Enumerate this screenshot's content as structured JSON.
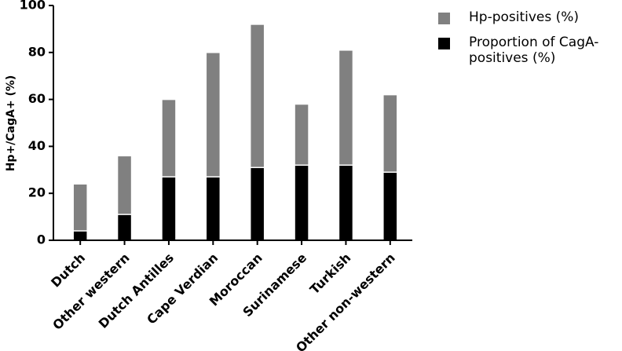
{
  "chart_data": {
    "type": "bar",
    "barmode": "overlay",
    "y_label": "Hp+/CagA+ (%)",
    "categories": [
      "Dutch",
      "Other western",
      "Dutch Antilles",
      "Cape Verdian",
      "Moroccan",
      "Surinamese",
      "Turkish",
      "Other non-western"
    ],
    "series": [
      {
        "name": "Hp-positives (%)",
        "color": "#808080",
        "values": [
          24,
          36,
          60,
          80,
          92,
          58,
          81,
          62
        ]
      },
      {
        "name": "Proportion of CagA-positives (%)",
        "color": "#000000",
        "values": [
          4,
          11,
          27,
          27,
          31,
          32,
          32,
          29
        ]
      }
    ],
    "ylim": [
      0,
      100
    ],
    "yticks": [
      0,
      20,
      40,
      60,
      80,
      100
    ]
  }
}
